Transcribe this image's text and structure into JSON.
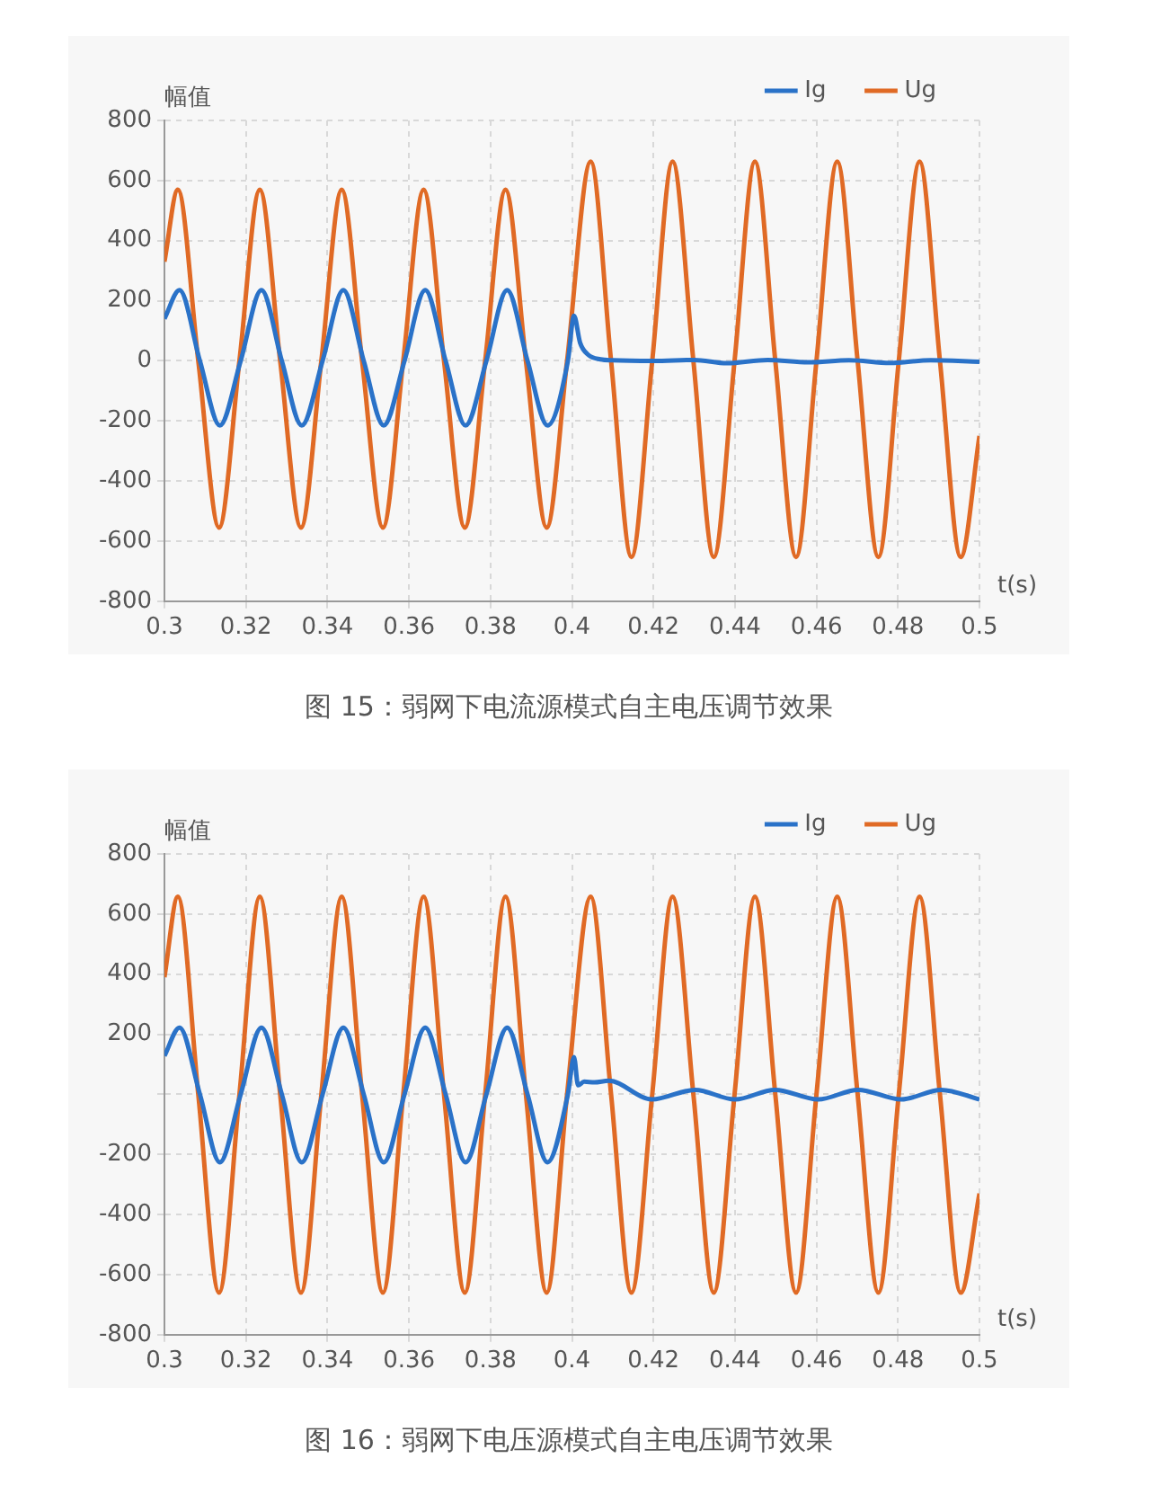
{
  "chart_data": [
    {
      "type": "line",
      "ylabel": "幅值",
      "xlabel": "t(s)",
      "annotations": [
        "图 15：弱网下电流源模式自主电压调节效果"
      ],
      "xlim": [
        0.3,
        0.5
      ],
      "xticks": [
        0.3,
        0.32,
        0.34,
        0.36,
        0.38,
        0.4,
        0.42,
        0.44,
        0.46,
        0.48,
        0.5
      ],
      "ylim": [
        -800,
        800
      ],
      "yticks": [
        -800,
        -600,
        -400,
        -200,
        0,
        200,
        400,
        600,
        800
      ],
      "grid": true,
      "legend": "top right",
      "marker": "none",
      "line_style": "solid",
      "series": [
        {
          "name": "Ig",
          "color": "#2a72c8",
          "x": [
            0.3,
            0.3037,
            0.3087,
            0.3136,
            0.3187,
            0.3238,
            0.3288,
            0.3337,
            0.3388,
            0.3439,
            0.3489,
            0.3538,
            0.3589,
            0.364,
            0.369,
            0.3739,
            0.379,
            0.3841,
            0.3891,
            0.394,
            0.399,
            0.4005,
            0.402,
            0.404,
            0.407,
            0.41,
            0.42,
            0.43,
            0.438,
            0.448,
            0.458,
            0.468,
            0.478,
            0.488,
            0.5
          ],
          "values": [
            140,
            235,
            0,
            -215,
            0,
            235,
            0,
            -215,
            0,
            235,
            0,
            -215,
            0,
            235,
            0,
            -215,
            0,
            235,
            0,
            -215,
            0,
            150,
            60,
            20,
            5,
            2,
            0,
            3,
            -8,
            3,
            -5,
            2,
            -7,
            2,
            -3
          ]
        },
        {
          "name": "Ug",
          "color": "#e06a25",
          "x": [
            0.3,
            0.3033,
            0.3083,
            0.3134,
            0.3184,
            0.3234,
            0.3284,
            0.3335,
            0.3385,
            0.3435,
            0.3485,
            0.3536,
            0.3586,
            0.3636,
            0.3686,
            0.3737,
            0.3787,
            0.3837,
            0.3887,
            0.3938,
            0.3988,
            0.4046,
            0.4096,
            0.4146,
            0.4197,
            0.4247,
            0.4298,
            0.4348,
            0.4399,
            0.4449,
            0.4499,
            0.455,
            0.46,
            0.4651,
            0.4701,
            0.4752,
            0.4802,
            0.4853,
            0.4903,
            0.4954,
            0.5
          ],
          "values": [
            330,
            570,
            0,
            -555,
            0,
            570,
            0,
            -555,
            0,
            570,
            0,
            -555,
            0,
            570,
            0,
            -555,
            0,
            570,
            0,
            -555,
            0,
            663,
            0,
            -653,
            0,
            663,
            0,
            -653,
            0,
            663,
            0,
            -653,
            0,
            663,
            0,
            -653,
            0,
            663,
            0,
            -653,
            -250
          ]
        }
      ]
    },
    {
      "type": "line",
      "ylabel": "幅值",
      "xlabel": "t(s)",
      "annotations": [
        "图 16：弱网下电压源模式自主电压调节效果"
      ],
      "xlim": [
        0.3,
        0.5
      ],
      "xticks": [
        0.3,
        0.32,
        0.34,
        0.36,
        0.38,
        0.4,
        0.42,
        0.44,
        0.46,
        0.48,
        0.5
      ],
      "ylim": [
        -800,
        800
      ],
      "yticks": [
        -800,
        -600,
        -400,
        -200,
        {
          "value": 0,
          "label": null
        },
        200,
        400,
        600,
        800
      ],
      "grid": true,
      "legend": "top right",
      "marker": "none",
      "line_style": "solid",
      "series": [
        {
          "name": "Ig",
          "color": "#2a72c8",
          "x": [
            0.3,
            0.3037,
            0.3087,
            0.3136,
            0.3187,
            0.3238,
            0.3288,
            0.3337,
            0.3388,
            0.3439,
            0.3489,
            0.3538,
            0.3589,
            0.364,
            0.369,
            0.3739,
            0.379,
            0.3841,
            0.3891,
            0.394,
            0.399,
            0.4005,
            0.4015,
            0.403,
            0.4055,
            0.409,
            0.4196,
            0.4302,
            0.44,
            0.4498,
            0.4604,
            0.4702,
            0.4808,
            0.4906,
            0.5
          ],
          "values": [
            128,
            222,
            0,
            -226,
            0,
            222,
            0,
            -226,
            0,
            222,
            0,
            -226,
            0,
            222,
            0,
            -226,
            0,
            222,
            0,
            -226,
            0,
            124,
            30,
            42,
            40,
            45,
            -17,
            15,
            -17,
            15,
            -17,
            15,
            -17,
            15,
            -17
          ]
        },
        {
          "name": "Ug",
          "color": "#e06a25",
          "x": [
            0.3,
            0.3033,
            0.3083,
            0.3134,
            0.3184,
            0.3234,
            0.3284,
            0.3335,
            0.3385,
            0.3435,
            0.3485,
            0.3536,
            0.3586,
            0.3636,
            0.3686,
            0.3737,
            0.3787,
            0.3837,
            0.3887,
            0.3938,
            0.3988,
            0.4046,
            0.4096,
            0.4146,
            0.4197,
            0.4247,
            0.4298,
            0.4348,
            0.4399,
            0.4449,
            0.4499,
            0.455,
            0.46,
            0.4651,
            0.4701,
            0.4752,
            0.4802,
            0.4853,
            0.4903,
            0.4954,
            0.5
          ],
          "values": [
            390,
            658,
            0,
            -660,
            0,
            658,
            0,
            -660,
            0,
            658,
            0,
            -660,
            0,
            658,
            0,
            -660,
            0,
            658,
            0,
            -660,
            0,
            658,
            0,
            -660,
            0,
            658,
            0,
            -660,
            0,
            658,
            0,
            -660,
            0,
            658,
            0,
            -660,
            0,
            658,
            0,
            -660,
            -330
          ]
        }
      ]
    }
  ]
}
